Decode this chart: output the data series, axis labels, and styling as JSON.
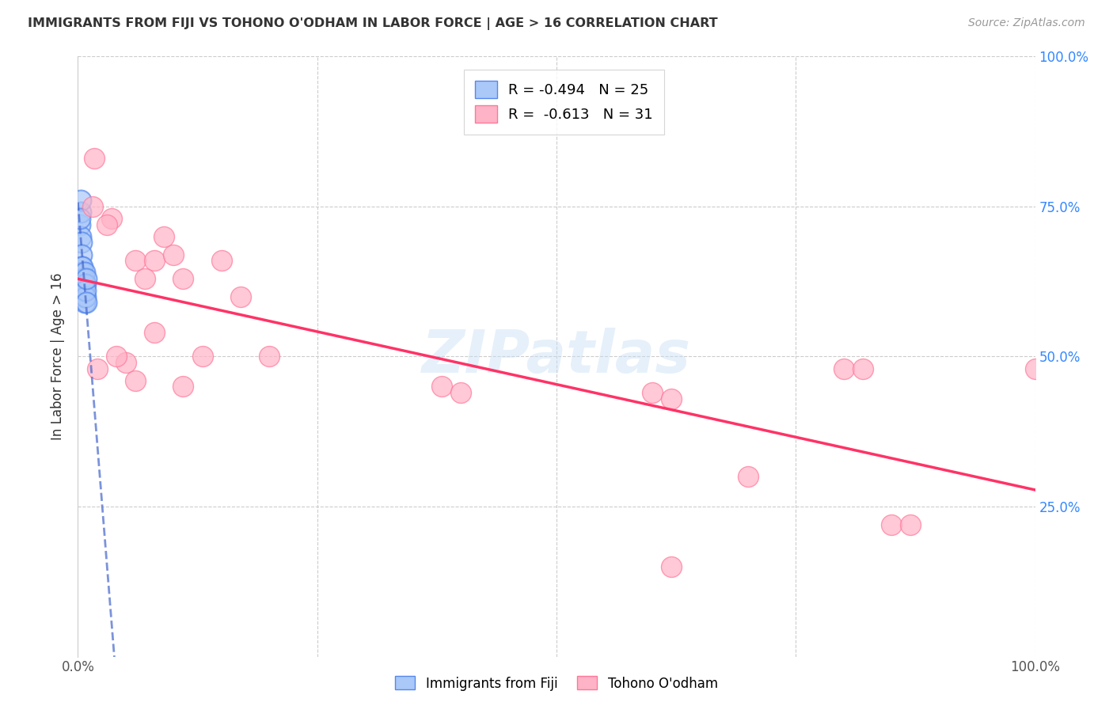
{
  "title": "IMMIGRANTS FROM FIJI VS TOHONO O'ODHAM IN LABOR FORCE | AGE > 16 CORRELATION CHART",
  "source": "Source: ZipAtlas.com",
  "ylabel": "In Labor Force | Age > 16",
  "xlim": [
    0.0,
    1.0
  ],
  "ylim": [
    0.0,
    1.0
  ],
  "fiji_R": "-0.494",
  "fiji_N": "25",
  "tohono_R": "-0.613",
  "tohono_N": "31",
  "fiji_color": "#aac8f8",
  "fiji_edge_color": "#5588ee",
  "tohono_color": "#ffb3c6",
  "tohono_edge_color": "#ff7799",
  "fiji_line_color": "#4466cc",
  "tohono_line_color": "#ff3366",
  "fiji_dots": [
    [
      0.002,
      0.72
    ],
    [
      0.003,
      0.74
    ],
    [
      0.003,
      0.7
    ],
    [
      0.004,
      0.69
    ],
    [
      0.004,
      0.67
    ],
    [
      0.004,
      0.65
    ],
    [
      0.005,
      0.64
    ],
    [
      0.005,
      0.63
    ],
    [
      0.005,
      0.61
    ],
    [
      0.005,
      0.65
    ],
    [
      0.006,
      0.63
    ],
    [
      0.006,
      0.62
    ],
    [
      0.006,
      0.61
    ],
    [
      0.006,
      0.6
    ],
    [
      0.007,
      0.62
    ],
    [
      0.007,
      0.6
    ],
    [
      0.007,
      0.59
    ],
    [
      0.007,
      0.64
    ],
    [
      0.008,
      0.62
    ],
    [
      0.008,
      0.6
    ],
    [
      0.008,
      0.61
    ],
    [
      0.009,
      0.59
    ],
    [
      0.009,
      0.63
    ],
    [
      0.003,
      0.76
    ],
    [
      0.002,
      0.73
    ]
  ],
  "tohono_dots": [
    [
      0.017,
      0.83
    ],
    [
      0.035,
      0.73
    ],
    [
      0.06,
      0.66
    ],
    [
      0.08,
      0.66
    ],
    [
      0.1,
      0.67
    ],
    [
      0.015,
      0.75
    ],
    [
      0.03,
      0.72
    ],
    [
      0.05,
      0.49
    ],
    [
      0.07,
      0.63
    ],
    [
      0.09,
      0.7
    ],
    [
      0.11,
      0.63
    ],
    [
      0.13,
      0.5
    ],
    [
      0.15,
      0.66
    ],
    [
      0.17,
      0.6
    ],
    [
      0.2,
      0.5
    ],
    [
      0.02,
      0.48
    ],
    [
      0.04,
      0.5
    ],
    [
      0.06,
      0.46
    ],
    [
      0.08,
      0.54
    ],
    [
      0.11,
      0.45
    ],
    [
      0.38,
      0.45
    ],
    [
      0.4,
      0.44
    ],
    [
      0.6,
      0.44
    ],
    [
      0.62,
      0.43
    ],
    [
      0.7,
      0.3
    ],
    [
      0.8,
      0.48
    ],
    [
      0.82,
      0.48
    ],
    [
      0.85,
      0.22
    ],
    [
      0.87,
      0.22
    ],
    [
      0.62,
      0.15
    ],
    [
      1.0,
      0.48
    ]
  ],
  "background_color": "#ffffff",
  "grid_color": "#cccccc",
  "watermark": "ZIPatlas",
  "right_ytick_labels": [
    "100.0%",
    "75.0%",
    "50.0%",
    "25.0%"
  ],
  "right_ytick_positions": [
    1.0,
    0.75,
    0.5,
    0.25
  ],
  "fiji_line_x": [
    0.0,
    0.028
  ],
  "tohono_line_x": [
    0.0,
    1.0
  ]
}
